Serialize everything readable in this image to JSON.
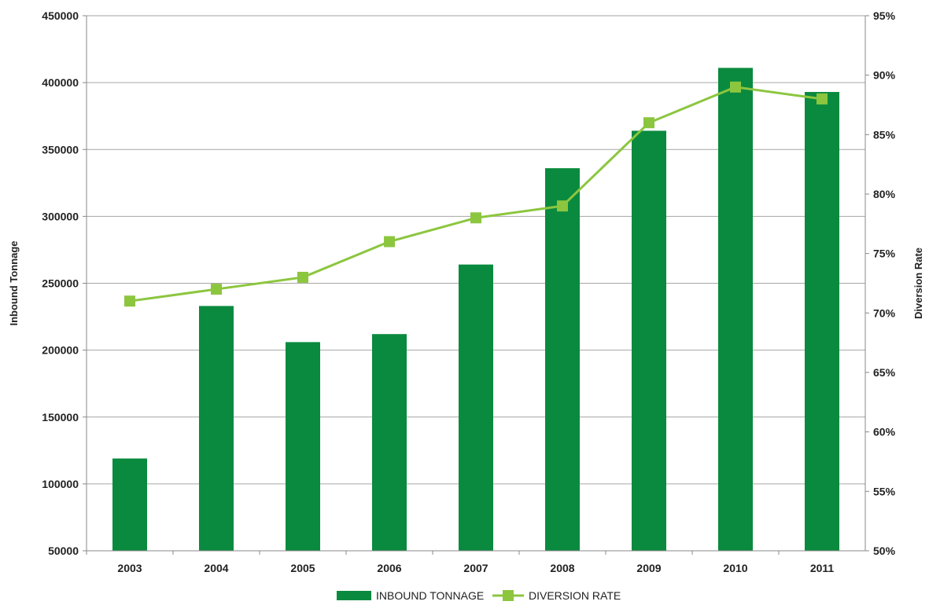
{
  "chart_data": {
    "type": "bar",
    "title": "",
    "categories": [
      "2003",
      "2004",
      "2005",
      "2006",
      "2007",
      "2008",
      "2009",
      "2010",
      "2011"
    ],
    "series": [
      {
        "name": "INBOUND TONNAGE",
        "type": "bar",
        "axis": "left",
        "values": [
          119000,
          233000,
          206000,
          212000,
          264000,
          336000,
          364000,
          411000,
          393000
        ]
      },
      {
        "name": "DIVERSION RATE",
        "type": "line",
        "axis": "right",
        "values": [
          71,
          72,
          73,
          76,
          78,
          79,
          86,
          89,
          88
        ]
      }
    ],
    "ylabel": "Inbound Tonnage",
    "y2label": "Diversion Rate",
    "ylim": [
      50000,
      450000
    ],
    "y2lim": [
      50,
      95
    ],
    "yticks": [
      "50000",
      "100000",
      "150000",
      "200000",
      "250000",
      "300000",
      "350000",
      "400000",
      "450000"
    ],
    "y2ticks": [
      "50%",
      "55%",
      "60%",
      "65%",
      "70%",
      "75%",
      "80%",
      "85%",
      "90%",
      "95%"
    ],
    "grid": true,
    "legend_position": "bottom"
  },
  "colors": {
    "bar": "#0a8a3e",
    "line": "#8cc63f",
    "marker": "#8cc63f",
    "grid": "#a6a6a6",
    "axis": "#888888",
    "title": "#f5a623"
  }
}
